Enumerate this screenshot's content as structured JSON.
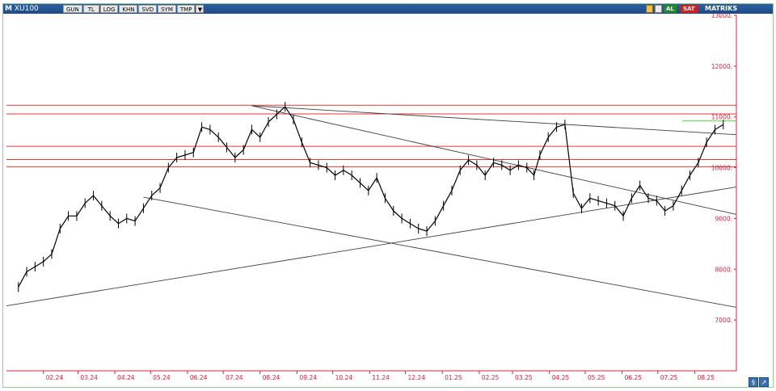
{
  "window": {
    "title": "XU100"
  },
  "toolbar": {
    "menu_glyph": "M",
    "buttons": [
      "GUN",
      "TL",
      "LOG",
      "KHN",
      "SVD",
      "SYM",
      "TMP"
    ],
    "dropdown_glyph": "▼",
    "buy_label": "AL",
    "sell_label": "SAT",
    "matriks_label": "MATRIKS"
  },
  "colors": {
    "accent": "#1d4a86",
    "price_line": "#000000",
    "support_resistance": "#e03a3a",
    "trend_line": "#404040",
    "axis_text": "#e0203a",
    "axis_line": "#e0203a",
    "last_level": "#4cd44c",
    "frame_border": "#9bc79b"
  },
  "nav": {
    "scroll_glyph": "§",
    "zoom_glyph": "↗"
  },
  "chart_data": {
    "type": "line",
    "title": "XU100",
    "xlabel": "",
    "ylabel": "",
    "ylim": [
      6000,
      13000
    ],
    "grid": false,
    "x_ticks": [
      "02.24",
      "03.24",
      "04.24",
      "05.24",
      "06.24",
      "07.24",
      "08.24",
      "09.24",
      "10.24",
      "11.24",
      "12.24",
      "01.25",
      "02.25",
      "03.25",
      "04.25",
      "05.25",
      "06.25",
      "07.25",
      "08.25"
    ],
    "y_ticks": [
      {
        "value": 13000,
        "label": "13000."
      },
      {
        "value": 12000,
        "label": "12000."
      },
      {
        "value": 11000,
        "label": "11000."
      },
      {
        "value": 10000,
        "label": "10000."
      },
      {
        "value": 9000,
        "label": "9000."
      },
      {
        "value": 8000,
        "label": "8000."
      },
      {
        "value": 7000,
        "label": "7000."
      }
    ],
    "series": [
      {
        "name": "XU100",
        "x": [
          "2024-01-11",
          "2024-01-18",
          "2024-01-25",
          "2024-02-01",
          "2024-02-08",
          "2024-02-15",
          "2024-02-22",
          "2024-02-29",
          "2024-03-07",
          "2024-03-14",
          "2024-03-21",
          "2024-03-28",
          "2024-04-04",
          "2024-04-11",
          "2024-04-18",
          "2024-04-25",
          "2024-05-02",
          "2024-05-09",
          "2024-05-16",
          "2024-05-23",
          "2024-05-30",
          "2024-06-06",
          "2024-06-13",
          "2024-06-20",
          "2024-06-27",
          "2024-07-04",
          "2024-07-11",
          "2024-07-18",
          "2024-07-25",
          "2024-08-01",
          "2024-08-08",
          "2024-08-15",
          "2024-08-22",
          "2024-08-29",
          "2024-09-05",
          "2024-09-12",
          "2024-09-19",
          "2024-09-26",
          "2024-10-03",
          "2024-10-10",
          "2024-10-17",
          "2024-10-24",
          "2024-10-31",
          "2024-11-07",
          "2024-11-14",
          "2024-11-21",
          "2024-11-28",
          "2024-12-05",
          "2024-12-12",
          "2024-12-19",
          "2024-12-26",
          "2025-01-02",
          "2025-01-09",
          "2025-01-16",
          "2025-01-23",
          "2025-01-30",
          "2025-02-06",
          "2025-02-13",
          "2025-02-20",
          "2025-02-27",
          "2025-03-06",
          "2025-03-13",
          "2025-03-19",
          "2025-03-24",
          "2025-03-31",
          "2025-04-07",
          "2025-04-14",
          "2025-04-21",
          "2025-04-28",
          "2025-05-05",
          "2025-05-12",
          "2025-05-19",
          "2025-05-26",
          "2025-06-02",
          "2025-06-09",
          "2025-06-16",
          "2025-06-23",
          "2025-06-30",
          "2025-07-07",
          "2025-07-14",
          "2025-07-21",
          "2025-07-28",
          "2025-08-04",
          "2025-08-11",
          "2025-08-18",
          "2025-08-25"
        ],
        "values": [
          7650,
          7950,
          8050,
          8150,
          8300,
          8800,
          9050,
          9050,
          9300,
          9450,
          9250,
          9050,
          8900,
          9000,
          8950,
          9200,
          9450,
          9600,
          10000,
          10200,
          10250,
          10300,
          10800,
          10750,
          10600,
          10400,
          10200,
          10350,
          10750,
          10600,
          10900,
          11050,
          11200,
          10950,
          10500,
          10100,
          10050,
          10000,
          9850,
          9950,
          9850,
          9700,
          9550,
          9800,
          9400,
          9150,
          9000,
          8900,
          8800,
          8750,
          8950,
          9250,
          9550,
          9950,
          10150,
          10050,
          9850,
          10100,
          10050,
          9950,
          10050,
          10000,
          9850,
          10250,
          10600,
          10800,
          10850,
          9500,
          9200,
          9400,
          9350,
          9300,
          9250,
          9050,
          9400,
          9650,
          9400,
          9350,
          9150,
          9250,
          9550,
          9850,
          10100,
          10500,
          10750,
          10850
        ]
      }
    ],
    "horizontal_levels": [
      11230,
      11060,
      10420,
      10160,
      10020
    ],
    "last_level": 10920,
    "trend_lines": [
      {
        "x1": "2024-07-25",
        "y1": 11220,
        "x2": "2025-09-05",
        "y2": 10650
      },
      {
        "x1": "2024-07-25",
        "y1": 11220,
        "x2": "2025-09-05",
        "y2": 9080
      },
      {
        "x1": "2024-04-25",
        "y1": 9420,
        "x2": "2025-09-05",
        "y2": 7250
      },
      {
        "x1": "2024-01-01",
        "y1": 7280,
        "x2": "2025-09-05",
        "y2": 9620
      }
    ]
  }
}
